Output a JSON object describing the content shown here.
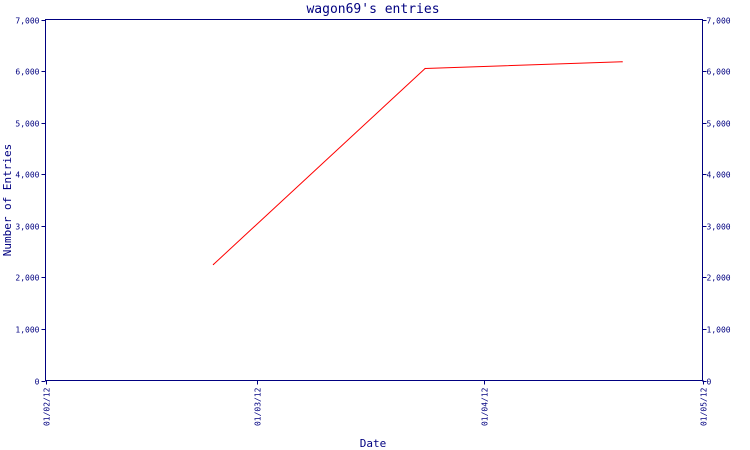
{
  "chart_data": {
    "type": "line",
    "title": "wagon69's entries",
    "xlabel": "Date",
    "ylabel": "Number of Entries",
    "x_ticks": [
      "01/02/12",
      "01/03/12",
      "01/04/12",
      "01/05/12"
    ],
    "y_ticks": [
      "0",
      "1,000",
      "2,000",
      "3,000",
      "4,000",
      "5,000",
      "6,000",
      "7,000"
    ],
    "xlim": [
      "2012-02-01",
      "2012-05-01"
    ],
    "ylim": [
      0,
      7000
    ],
    "grid": false,
    "series": [
      {
        "color": "#ff0000",
        "points": [
          {
            "x": "2012-02-24",
            "y": 2250
          },
          {
            "x": "2012-03-24",
            "y": 6050
          },
          {
            "x": "2012-04-20",
            "y": 6180
          }
        ]
      }
    ]
  }
}
